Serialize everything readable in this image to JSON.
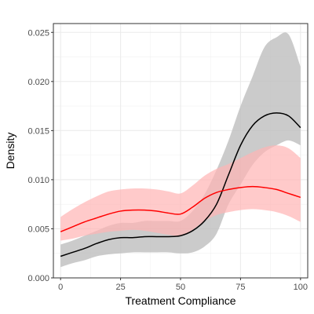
{
  "chart_data": {
    "type": "line",
    "title": "",
    "xlabel": "Treatment Compliance",
    "ylabel": "Density",
    "xlim": [
      -3,
      103
    ],
    "ylim": [
      0,
      0.0259
    ],
    "x_ticks": [
      0,
      25,
      50,
      75,
      100
    ],
    "x_tick_labels": [
      "0",
      "25",
      "50",
      "75",
      "100"
    ],
    "y_ticks": [
      0,
      0.005,
      0.01,
      0.015,
      0.02,
      0.025
    ],
    "y_tick_labels": [
      "0.000",
      "0.005",
      "0.010",
      "0.015",
      "0.020",
      "0.025"
    ],
    "grid": true,
    "legend": "none",
    "x": [
      0,
      5,
      10,
      15,
      20,
      25,
      30,
      35,
      40,
      45,
      50,
      55,
      60,
      65,
      70,
      75,
      80,
      85,
      90,
      95,
      100
    ],
    "series": [
      {
        "color": "#000000",
        "band_color": "#bebebe",
        "values": [
          0.0022,
          0.0026,
          0.003,
          0.0035,
          0.0039,
          0.0041,
          0.0041,
          0.0042,
          0.0042,
          0.0042,
          0.0043,
          0.0048,
          0.0058,
          0.0075,
          0.0105,
          0.0135,
          0.0155,
          0.0165,
          0.0168,
          0.0165,
          0.0153
        ],
        "lower": [
          0.0011,
          0.0015,
          0.0018,
          0.0022,
          0.0024,
          0.0025,
          0.0026,
          0.0026,
          0.0026,
          0.0026,
          0.0025,
          0.0026,
          0.0032,
          0.0045,
          0.0075,
          0.0095,
          0.0115,
          0.0128,
          0.0135,
          0.014,
          0.0135
        ],
        "upper": [
          0.0034,
          0.0038,
          0.0043,
          0.0048,
          0.0053,
          0.0056,
          0.0056,
          0.0058,
          0.0058,
          0.0058,
          0.0058,
          0.0068,
          0.0085,
          0.011,
          0.014,
          0.0175,
          0.0205,
          0.0235,
          0.0245,
          0.0248,
          0.0215
        ]
      },
      {
        "color": "#ff0000",
        "band_color": "#ffb3b3",
        "values": [
          0.0047,
          0.0052,
          0.0057,
          0.0061,
          0.0065,
          0.0068,
          0.0069,
          0.0069,
          0.0068,
          0.0066,
          0.0065,
          0.0072,
          0.0081,
          0.0087,
          0.009,
          0.0092,
          0.0093,
          0.0092,
          0.009,
          0.0086,
          0.0082
        ],
        "lower": [
          0.0038,
          0.004,
          0.0043,
          0.0045,
          0.0047,
          0.0048,
          0.0049,
          0.0048,
          0.0046,
          0.0044,
          0.0043,
          0.0049,
          0.0058,
          0.0064,
          0.0067,
          0.0069,
          0.007,
          0.0069,
          0.0067,
          0.0063,
          0.0057
        ],
        "upper": [
          0.0062,
          0.007,
          0.0077,
          0.0083,
          0.0088,
          0.009,
          0.0091,
          0.0091,
          0.009,
          0.0088,
          0.0086,
          0.0094,
          0.0104,
          0.0111,
          0.0116,
          0.0122,
          0.0128,
          0.0133,
          0.0135,
          0.0132,
          0.0122
        ]
      }
    ]
  }
}
